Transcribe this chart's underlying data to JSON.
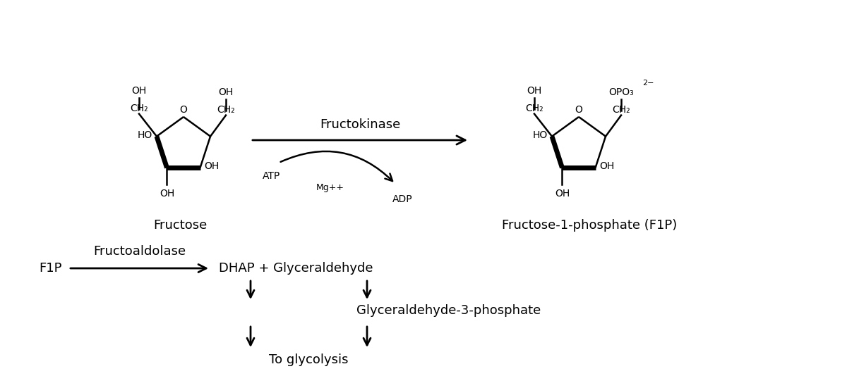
{
  "bg_color": "#ffffff",
  "text_color": "#000000",
  "fructose_label": "Fructose",
  "f1p_label": "Fructose-1-phosphate (F1P)",
  "enzyme1_label": "Fructokinase",
  "mg_label": "Mg++",
  "atp_label": "ATP",
  "adp_label": "ADP",
  "f1p_short": "F1P",
  "enzyme2_label": "Fructoaldolase",
  "dhap_label": "DHAP + Glyceraldehyde",
  "g3p_label": "Glyceraldehyde-3-phosphate",
  "glycolysis_label": "To glycolysis"
}
